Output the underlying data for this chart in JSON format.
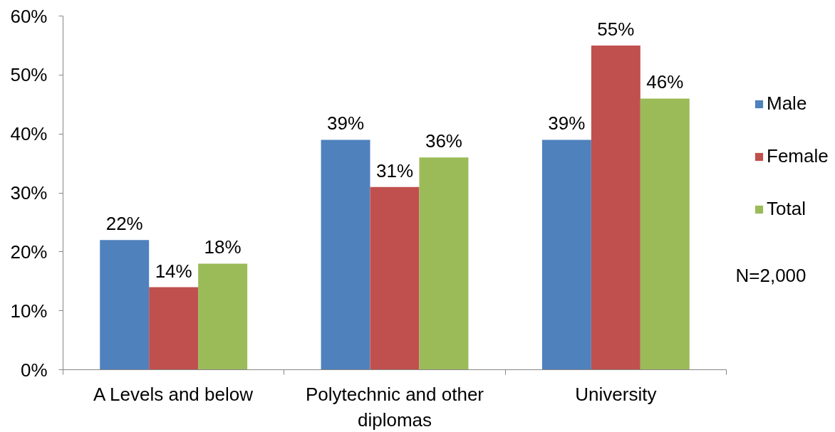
{
  "chart_data": {
    "type": "bar",
    "categories": [
      "A Levels and below",
      "Polytechnic and other diplomas",
      "University"
    ],
    "series": [
      {
        "name": "Male",
        "color": "#4f81bd",
        "values": [
          22,
          39,
          39
        ],
        "value_labels": [
          "22%",
          "39%",
          "39%"
        ]
      },
      {
        "name": "Female",
        "color": "#c0504d",
        "values": [
          14,
          31,
          55
        ],
        "value_labels": [
          "14%",
          "31%",
          "55%"
        ]
      },
      {
        "name": "Total",
        "color": "#9bbb59",
        "values": [
          18,
          36,
          46
        ],
        "value_labels": [
          "18%",
          "36%",
          "46%"
        ]
      }
    ],
    "ylim": [
      0,
      60
    ],
    "yticks": [
      {
        "value": 0,
        "label": "0%"
      },
      {
        "value": 10,
        "label": "10%"
      },
      {
        "value": 20,
        "label": "20%"
      },
      {
        "value": 30,
        "label": "30%"
      },
      {
        "value": 40,
        "label": "40%"
      },
      {
        "value": 50,
        "label": "50%"
      },
      {
        "value": 60,
        "label": "60%"
      }
    ],
    "grid": false,
    "legend": "right",
    "annotations": [
      "N=2,000"
    ]
  }
}
